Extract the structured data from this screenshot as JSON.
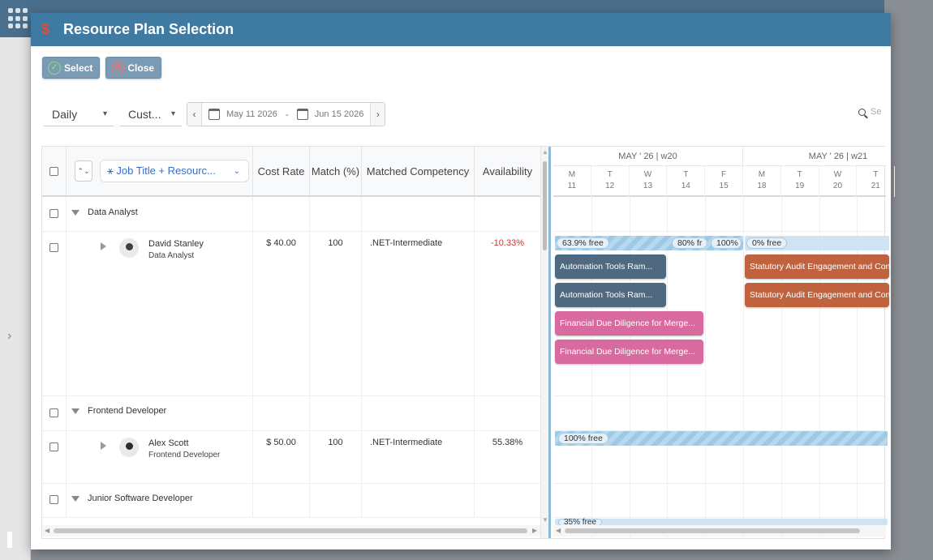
{
  "window": {
    "title": "Resource Plan Selection",
    "app_icon": "dollar-icon",
    "app_icon_glyph": "$"
  },
  "toolbar": {
    "select_label": "Select",
    "close_label": "Close"
  },
  "filters": {
    "view": "Daily",
    "period": "Cust...",
    "start_date": "May 11 2026",
    "range_sep": "-",
    "end_date": "Jun 15 2026",
    "search_placeholder": "Se"
  },
  "columns": {
    "group_by": "Job Title + Resourc...",
    "cost_rate": "Cost Rate",
    "match": "Match (%)",
    "competency": "Matched Competency",
    "availability": "Availability"
  },
  "groups": [
    {
      "name": "Data Analyst"
    },
    {
      "name": "Frontend Developer"
    },
    {
      "name": "Junior Software Developer"
    }
  ],
  "resources": [
    {
      "name": "David Stanley",
      "title": "Data Analyst",
      "cost": "$ 40.00",
      "match": "100",
      "competency": ".NET-Intermediate",
      "availability": "-10.33%",
      "availability_color": "#d0302a"
    },
    {
      "name": "Alex Scott",
      "title": "Frontend Developer",
      "cost": "$ 50.00",
      "match": "100",
      "competency": ".NET-Intermediate",
      "availability": "55.38%",
      "availability_color": "#333333"
    }
  ],
  "gantt": {
    "weeks": [
      "MAY ' 26 | w20",
      "MAY ' 26 | w21"
    ],
    "days": [
      {
        "dow": "M",
        "num": "11"
      },
      {
        "dow": "T",
        "num": "12"
      },
      {
        "dow": "W",
        "num": "13"
      },
      {
        "dow": "T",
        "num": "14"
      },
      {
        "dow": "F",
        "num": "15"
      },
      {
        "dow": "M",
        "num": "18"
      },
      {
        "dow": "T",
        "num": "19"
      },
      {
        "dow": "W",
        "num": "20"
      },
      {
        "dow": "T",
        "num": "21"
      }
    ],
    "david_availability": [
      "63.9% free",
      "80% fr",
      "100%",
      "0% free"
    ],
    "alex_availability": "100% free",
    "junior_availability": "35% free",
    "tasks": {
      "automation": "Automation Tools Ram...",
      "statutory": "Statutory Audit Engagement and Con",
      "financial": "Financial Due Diligence for Merge..."
    },
    "colors": {
      "automation": "#4f6a80",
      "statutory": "#c0623e",
      "financial": "#d96a9f"
    }
  }
}
